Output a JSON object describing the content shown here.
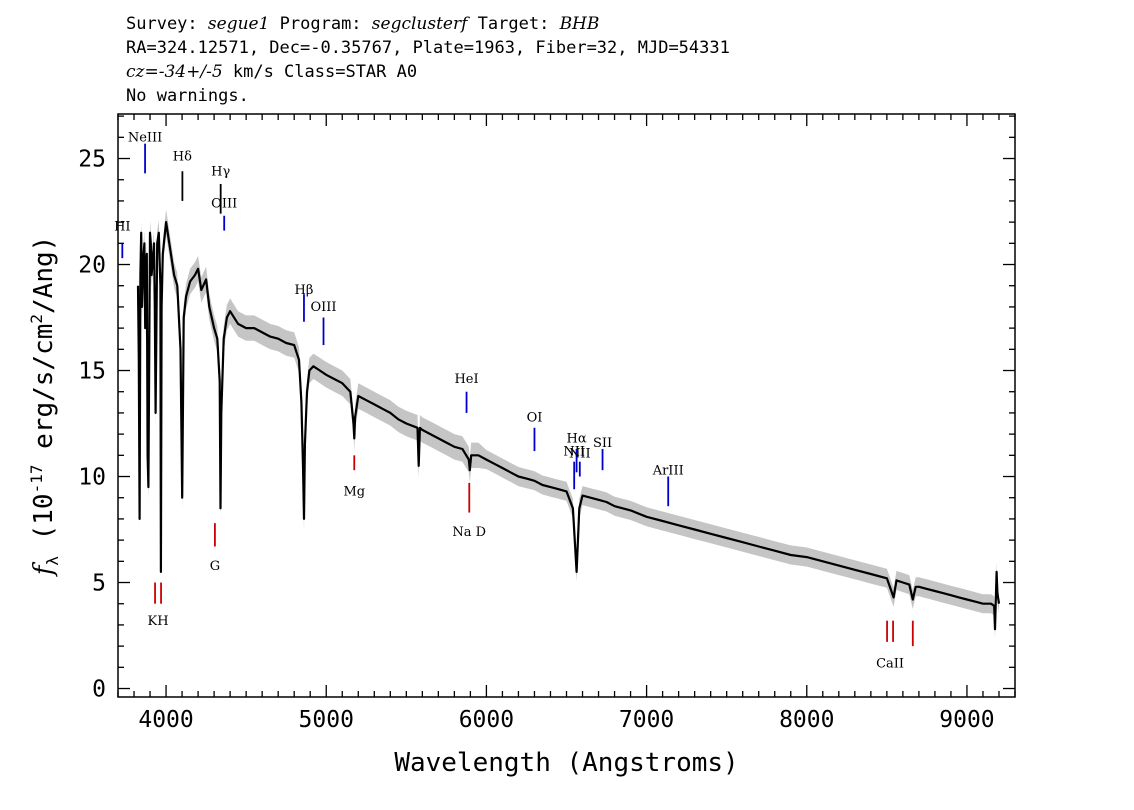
{
  "header": {
    "survey_label": "Survey:",
    "survey": "segue1",
    "program_label": "Program:",
    "program": "segclusterf",
    "target_label": "Target:",
    "target": "BHB",
    "line2": "RA=324.12571, Dec=-0.35767, Plate=1963, Fiber=32, MJD=54331",
    "cz": "cz=-34+/-5",
    "line3_rest": " km/s Class=STAR A0",
    "line4": "No warnings."
  },
  "chart_data": {
    "type": "line",
    "xlabel": "Wavelength (Angstroms)",
    "ylabel_prefix": "f",
    "ylabel_sub": "λ",
    "ylabel_main": " (10",
    "ylabel_exp1": "-17",
    "ylabel_mid": " erg/s/cm",
    "ylabel_exp2": "2",
    "ylabel_end": "/Ang)",
    "xlim": [
      3700,
      9300
    ],
    "ylim": [
      -0.4,
      27.1
    ],
    "xticks": [
      4000,
      5000,
      6000,
      7000,
      8000,
      9000
    ],
    "xtick_labels": [
      "4000",
      "5000",
      "6000",
      "7000",
      "8000",
      "9000"
    ],
    "yticks": [
      0,
      5,
      10,
      15,
      20,
      25
    ],
    "ytick_labels": [
      "0",
      "5",
      "10",
      "15",
      "20",
      "25"
    ],
    "series": [
      {
        "color": "#000000",
        "x": [
          3825,
          3830,
          3835,
          3840,
          3845,
          3850,
          3860,
          3865,
          3870,
          3880,
          3885,
          3890,
          3900,
          3905,
          3910,
          3925,
          3930,
          3935,
          3945,
          3955,
          3965,
          3968,
          3972,
          3980,
          4000,
          4020,
          4050,
          4070,
          4090,
          4101,
          4110,
          4125,
          4150,
          4180,
          4200,
          4220,
          4250,
          4270,
          4300,
          4320,
          4335,
          4340,
          4345,
          4360,
          4380,
          4400,
          4450,
          4500,
          4550,
          4600,
          4650,
          4700,
          4750,
          4800,
          4830,
          4845,
          4855,
          4861,
          4867,
          4880,
          4895,
          4920,
          4960,
          5000,
          5050,
          5100,
          5150,
          5170,
          5175,
          5180,
          5200,
          5250,
          5300,
          5350,
          5400,
          5450,
          5500,
          5570,
          5577,
          5585,
          5600,
          5650,
          5700,
          5750,
          5800,
          5850,
          5890,
          5896,
          5905,
          5950,
          6000,
          6050,
          6100,
          6150,
          6200,
          6250,
          6300,
          6350,
          6400,
          6450,
          6500,
          6540,
          6563,
          6580,
          6600,
          6650,
          6700,
          6750,
          6800,
          6900,
          7000,
          7100,
          7200,
          7300,
          7400,
          7500,
          7600,
          7700,
          7800,
          7900,
          8000,
          8100,
          8200,
          8300,
          8400,
          8500,
          8542,
          8560,
          8600,
          8640,
          8662,
          8680,
          8700,
          8750,
          8800,
          8850,
          8900,
          8950,
          9000,
          9050,
          9100,
          9150,
          9170,
          9175,
          9185,
          9190,
          9200
        ],
        "y": [
          19.0,
          15.5,
          8.0,
          19.5,
          21.5,
          18.0,
          20.5,
          21.0,
          17.0,
          20.5,
          11.0,
          9.5,
          21.5,
          21.0,
          19.5,
          21.0,
          18.0,
          13.0,
          21.0,
          21.5,
          19.0,
          5.5,
          18.0,
          20.5,
          22.0,
          21.0,
          19.5,
          19.0,
          16.0,
          9.0,
          17.5,
          18.5,
          19.2,
          19.5,
          19.8,
          18.8,
          19.3,
          18.0,
          17.0,
          16.5,
          14.5,
          8.5,
          13.0,
          16.5,
          17.5,
          17.8,
          17.2,
          17.0,
          17.0,
          16.8,
          16.6,
          16.5,
          16.3,
          16.2,
          15.5,
          13.5,
          10.5,
          8.0,
          11.5,
          14.0,
          15.0,
          15.2,
          15.0,
          14.8,
          14.6,
          14.4,
          14.0,
          12.5,
          11.8,
          12.8,
          13.8,
          13.6,
          13.4,
          13.2,
          13.0,
          12.7,
          12.5,
          12.3,
          10.5,
          12.3,
          12.2,
          12.0,
          11.8,
          11.6,
          11.4,
          11.3,
          10.8,
          10.3,
          11.0,
          11.0,
          10.8,
          10.6,
          10.4,
          10.2,
          10.0,
          9.9,
          9.8,
          9.6,
          9.5,
          9.4,
          9.3,
          8.5,
          5.5,
          8.5,
          9.1,
          9.0,
          8.9,
          8.8,
          8.6,
          8.4,
          8.1,
          7.9,
          7.7,
          7.5,
          7.3,
          7.1,
          6.9,
          6.7,
          6.5,
          6.3,
          6.2,
          6.0,
          5.8,
          5.6,
          5.4,
          5.2,
          4.3,
          5.1,
          5.0,
          4.9,
          4.2,
          4.8,
          4.8,
          4.7,
          4.6,
          4.5,
          4.4,
          4.3,
          4.2,
          4.1,
          4.0,
          4.0,
          3.9,
          2.8,
          5.5,
          4.5,
          4.0
        ]
      }
    ],
    "error_band": {
      "color": "#bbbbbb",
      "half_width_blue": 0.6,
      "half_width_red": 0.45
    },
    "emission_lines": [
      {
        "label": "NeIII",
        "x": 3869,
        "y_text": 25.8,
        "y0": 24.3,
        "y1": 25.7,
        "color": "#0000cc"
      },
      {
        "label": "Hδ",
        "x": 4102,
        "y_text": 24.9,
        "y0": 23.0,
        "y1": 24.4,
        "color": "#000000"
      },
      {
        "label": "Hγ",
        "x": 4341,
        "y_text": 24.2,
        "y0": 22.4,
        "y1": 23.8,
        "color": "#000000"
      },
      {
        "label": "OIII",
        "x": 4363,
        "y_text": 22.7,
        "y0": 21.6,
        "y1": 22.3,
        "color": "#0000cc"
      },
      {
        "label": "HI",
        "x": 3727,
        "y_text": 21.6,
        "y0": 20.3,
        "y1": 21.0,
        "color": "#0000cc"
      },
      {
        "label": "Hβ",
        "x": 4861,
        "y_text": 18.6,
        "y0": 17.3,
        "y1": 18.6,
        "color": "#0000cc"
      },
      {
        "label": "OIII",
        "x": 4983,
        "y_text": 17.8,
        "y0": 16.2,
        "y1": 17.5,
        "color": "#0000cc"
      },
      {
        "label": "HeI",
        "x": 5876,
        "y_text": 14.4,
        "y0": 13.0,
        "y1": 14.0,
        "color": "#0000cc"
      },
      {
        "label": "OI",
        "x": 6300,
        "y_text": 12.6,
        "y0": 11.2,
        "y1": 12.3,
        "color": "#0000cc"
      },
      {
        "label": "NII",
        "x": 6548,
        "y_text": 11.0,
        "y0": 9.4,
        "y1": 10.7,
        "color": "#0000cc"
      },
      {
        "label": "Hα",
        "x": 6563,
        "y_text": 11.6,
        "y0": 10.2,
        "y1": 11.3,
        "color": "#0000cc"
      },
      {
        "label": "NII",
        "x": 6583,
        "y_text": 10.9,
        "y0": 10.0,
        "y1": 10.7,
        "color": "#0000cc"
      },
      {
        "label": "SII",
        "x": 6725,
        "y_text": 11.4,
        "y0": 10.3,
        "y1": 11.3,
        "color": "#0000cc"
      },
      {
        "label": "ArIII",
        "x": 7135,
        "y_text": 10.1,
        "y0": 8.6,
        "y1": 10.0,
        "color": "#0000cc"
      }
    ],
    "absorption_lines": [
      {
        "label": "KH",
        "x": 3950,
        "y_text": 3.0,
        "y0": 4.0,
        "y1": 5.0,
        "color": "#cc0000",
        "double": true
      },
      {
        "label": "G",
        "x": 4305,
        "y_text": 5.6,
        "y0": 6.7,
        "y1": 7.8,
        "color": "#cc0000"
      },
      {
        "label": "Mg",
        "x": 5175,
        "y_text": 9.1,
        "y0": 10.3,
        "y1": 11.0,
        "color": "#cc0000"
      },
      {
        "label": "Na  D",
        "x": 5893,
        "y_text": 7.2,
        "y0": 8.3,
        "y1": 9.7,
        "color": "#cc0000"
      },
      {
        "label": "CaII",
        "x": 8520,
        "y_text": 1.0,
        "y0": 2.2,
        "y1": 3.2,
        "color": "#cc0000",
        "double": true
      },
      {
        "label": "",
        "x": 8662,
        "y_text": 1.0,
        "y0": 2.0,
        "y1": 3.2,
        "color": "#cc0000"
      }
    ]
  }
}
